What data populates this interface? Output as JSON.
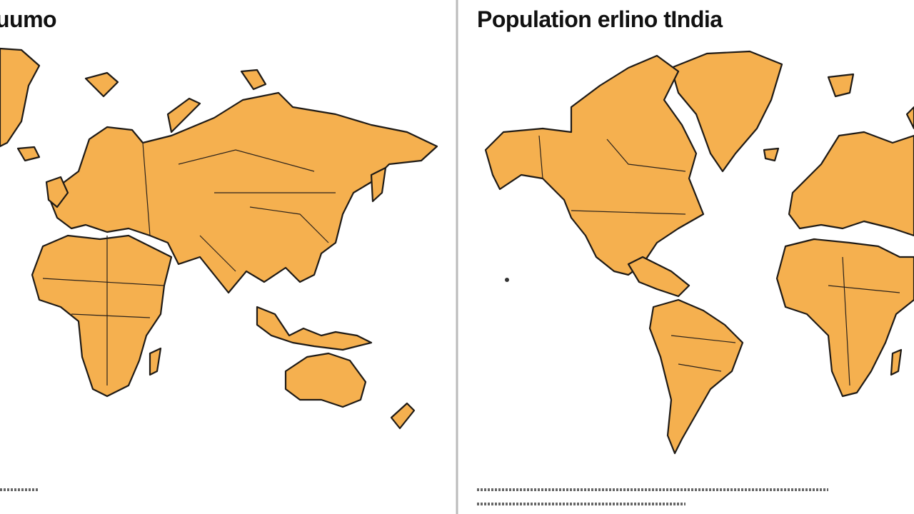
{
  "panels": [
    {
      "title": "uumo"
    },
    {
      "title": "Population erlino tIndia"
    }
  ]
}
